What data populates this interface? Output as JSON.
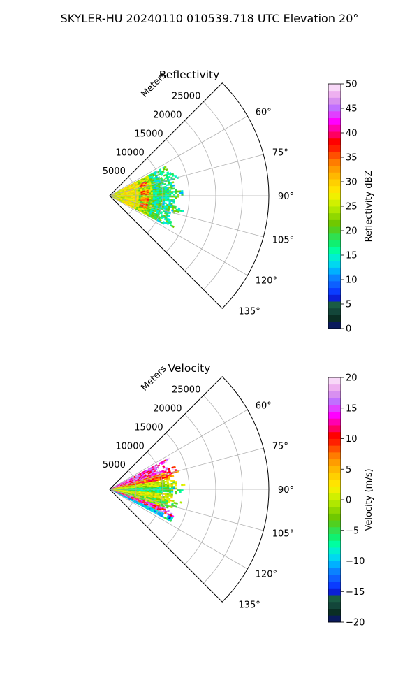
{
  "suptitle": "SKYLER-HU  20240110  010539.718 UTC Elevation 20°",
  "chart_data": [
    {
      "type": "heatmap",
      "projection": "polar-sector",
      "title": "Reflectivity",
      "radial_axis_label": "Meters",
      "radial_ticks": [
        5000,
        10000,
        15000,
        20000,
        25000
      ],
      "radial_tick_labels": [
        "5000",
        "10000",
        "15000",
        "20000",
        "25000"
      ],
      "rlim": [
        0,
        30000
      ],
      "angle_ticks": [
        60,
        75,
        90,
        105,
        120,
        135
      ],
      "angle_tick_labels": [
        "60°",
        "75°",
        "90°",
        "105°",
        "120°",
        "135°"
      ],
      "thetalim": [
        45,
        135
      ],
      "grid": true,
      "data_extent": {
        "azimuth_range": [
          62,
          118
        ],
        "range_max_m": 14000
      },
      "features": "near-field returns 15-35 dBZ, ring of 35-40 dBZ echoes near 5000-7000 m, 15-25 dBZ scatter beyond",
      "colorbar": {
        "label": "Reflectivity dBZ",
        "range": [
          0,
          50
        ],
        "ticks": [
          0,
          5,
          10,
          15,
          20,
          25,
          30,
          35,
          40,
          45,
          50
        ],
        "tick_labels": [
          "0",
          "5",
          "10",
          "15",
          "20",
          "25",
          "30",
          "35",
          "40",
          "45",
          "50"
        ],
        "colors": [
          "#0a1a5c",
          "#0a2e24",
          "#13463a",
          "#1a5c44",
          "#0b1fd8",
          "#0a3cff",
          "#0d60ff",
          "#0a82ff",
          "#00b0ff",
          "#00d8f0",
          "#00f0d0",
          "#00ffa0",
          "#10f070",
          "#30e050",
          "#50d020",
          "#70c800",
          "#90d800",
          "#b0e800",
          "#d0f000",
          "#f0f000",
          "#ffe400",
          "#ffd000",
          "#ffb800",
          "#ff9c00",
          "#ff7c00",
          "#ff5000",
          "#ff2000",
          "#ff0000",
          "#ff0060",
          "#ff00b0",
          "#ff00ff",
          "#e040ff",
          "#c070ff",
          "#d890f0",
          "#eeb0f0",
          "#f8d8f8"
        ]
      }
    },
    {
      "type": "heatmap",
      "projection": "polar-sector",
      "title": "Velocity",
      "radial_axis_label": "Meters",
      "radial_ticks": [
        5000,
        10000,
        15000,
        20000,
        25000
      ],
      "radial_tick_labels": [
        "5000",
        "10000",
        "15000",
        "20000",
        "25000"
      ],
      "rlim": [
        0,
        30000
      ],
      "angle_ticks": [
        60,
        75,
        90,
        105,
        120,
        135
      ],
      "angle_tick_labels": [
        "60°",
        "75°",
        "90°",
        "105°",
        "120°",
        "135°"
      ],
      "thetalim": [
        45,
        135
      ],
      "grid": true,
      "data_extent": {
        "azimuth_range": [
          62,
          118
        ],
        "range_max_m": 14000
      },
      "features": "positive velocities (10-20 m/s) on the north side, near-zero band along 90°, negative velocities (-5 to -15 m/s) on the south side, positive band near 110-115°",
      "colorbar": {
        "label": "Velocity (m/s)",
        "range": [
          -20,
          20
        ],
        "ticks": [
          -20,
          -15,
          -10,
          -5,
          0,
          5,
          10,
          15,
          20
        ],
        "tick_labels": [
          "−20",
          "−15",
          "−10",
          "−5",
          "0",
          "5",
          "10",
          "15",
          "20"
        ],
        "colors": [
          "#0a1a5c",
          "#0a2e24",
          "#13463a",
          "#1a5c44",
          "#0b1fd8",
          "#0a3cff",
          "#0d60ff",
          "#0a82ff",
          "#00b0ff",
          "#00d8f0",
          "#00f0d0",
          "#00ffa0",
          "#10f070",
          "#30e050",
          "#50d020",
          "#70c800",
          "#90d800",
          "#b0e800",
          "#d0f000",
          "#f0f000",
          "#ffe400",
          "#ffd000",
          "#ffb800",
          "#ff9c00",
          "#ff7c00",
          "#ff5000",
          "#ff2000",
          "#ff0000",
          "#ff0060",
          "#ff00b0",
          "#ff00ff",
          "#e040ff",
          "#c070ff",
          "#d890f0",
          "#eeb0f0",
          "#f8d8f8"
        ]
      }
    }
  ]
}
